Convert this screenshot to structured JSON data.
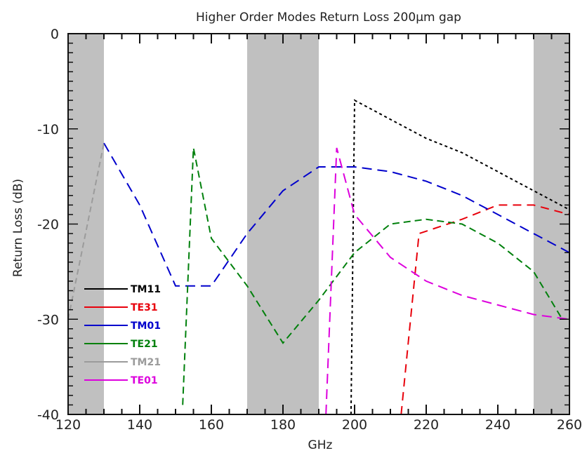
{
  "chart_data": {
    "type": "line",
    "title": "Higher Order Modes Return Loss 200µm gap",
    "xlabel": "GHz",
    "ylabel": "Return Loss (dB)",
    "xlim": [
      120,
      260
    ],
    "ylim": [
      -40,
      0
    ],
    "y_inverted": true,
    "x_ticks": [
      120,
      140,
      160,
      180,
      200,
      220,
      240,
      260
    ],
    "y_ticks": [
      0,
      -10,
      -20,
      -30,
      -40
    ],
    "y_tick_labels": [
      "0",
      "-10",
      "-20",
      "-30",
      "-40"
    ],
    "grid": false,
    "legend_position": "bottom-left",
    "shaded_bands": [
      [
        120,
        130
      ],
      [
        170,
        190
      ],
      [
        250,
        260
      ]
    ],
    "shade_color": "#c0c0c0",
    "series": [
      {
        "name": "TM11",
        "color": "#000000",
        "x": [
          199,
          200,
          210,
          220,
          230,
          240,
          250,
          260
        ],
        "y": [
          -40,
          -7,
          -9,
          -11,
          -12.5,
          -14.5,
          -16.5,
          -18.5
        ]
      },
      {
        "name": "TE31",
        "color": "#e8000b",
        "x": [
          213,
          218,
          230,
          240,
          250,
          260
        ],
        "y": [
          -40,
          -21,
          -19.5,
          -18,
          -18,
          -19
        ]
      },
      {
        "name": "TM01",
        "color": "#0000cc",
        "x": [
          130,
          140,
          150,
          160,
          170,
          180,
          190,
          200,
          210,
          220,
          230,
          240,
          250,
          260
        ],
        "y": [
          -11.5,
          -18,
          -26.5,
          -26.5,
          -21,
          -16.5,
          -14,
          -14,
          -14.5,
          -15.5,
          -17,
          -19,
          -21,
          -23
        ]
      },
      {
        "name": "TE21",
        "color": "#00800c",
        "x": [
          152,
          155,
          160,
          170,
          180,
          190,
          200,
          210,
          220,
          230,
          240,
          250,
          258
        ],
        "y": [
          -39,
          -12,
          -21.5,
          -26.5,
          -32.5,
          -28,
          -23,
          -20,
          -19.5,
          -20,
          -22,
          -25,
          -30
        ]
      },
      {
        "name": "TM21",
        "color": "#9b9b9b",
        "x": [
          120,
          130
        ],
        "y": [
          -30,
          -11.5
        ]
      },
      {
        "name": "TE01",
        "color": "#dd00dd",
        "x": [
          192,
          195,
          200,
          210,
          220,
          230,
          240,
          250,
          260
        ],
        "y": [
          -40,
          -12,
          -19,
          -23.5,
          -26,
          -27.5,
          -28.5,
          -29.5,
          -30
        ]
      }
    ]
  }
}
